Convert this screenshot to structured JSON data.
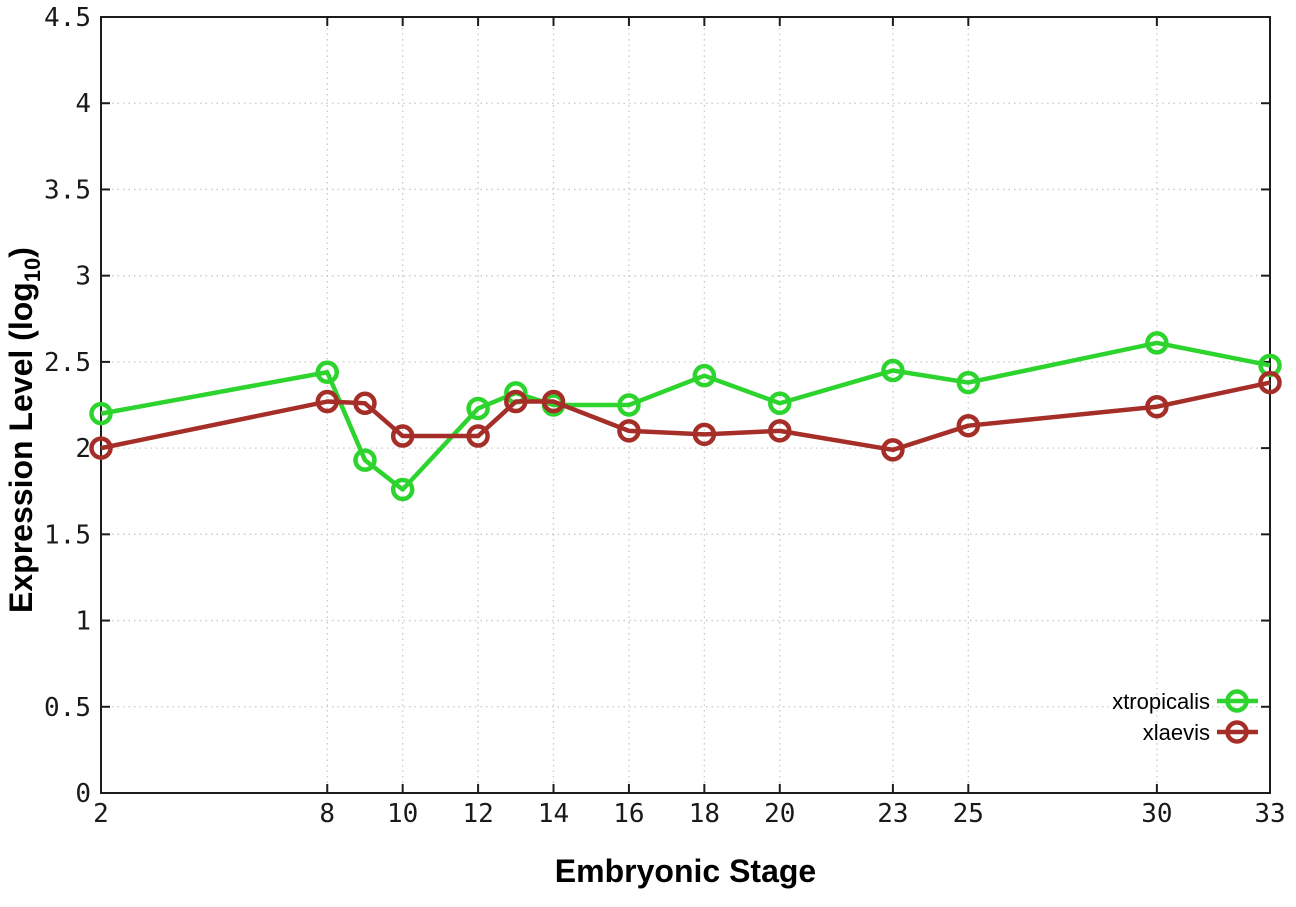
{
  "chart_data": {
    "type": "line",
    "title": "",
    "xlabel": "Embryonic Stage",
    "ylabel": "Expression Level (log10)",
    "ylabel_parts": {
      "main": "Expression Level (log",
      "sub": "10",
      "end": ")"
    },
    "x": [
      2,
      8,
      9,
      10,
      12,
      13,
      14,
      16,
      18,
      20,
      23,
      25,
      30,
      33
    ],
    "xlim": [
      2,
      33
    ],
    "ylim": [
      0,
      4.5
    ],
    "xtick_values": [
      2,
      8,
      10,
      12,
      14,
      16,
      18,
      20,
      23,
      25,
      30,
      33
    ],
    "xtick_labels": [
      "2",
      "8",
      "10",
      "12",
      "14",
      "16",
      "18",
      "20",
      "23",
      "25",
      "30",
      "33"
    ],
    "ytick_values": [
      0,
      0.5,
      1,
      1.5,
      2,
      2.5,
      3,
      3.5,
      4,
      4.5
    ],
    "ytick_labels": [
      "0",
      "0.5",
      "1",
      "1.5",
      "2",
      "2.5",
      "3",
      "3.5",
      "4",
      "4.5"
    ],
    "grid": true,
    "legend_position": "bottom-right",
    "series": [
      {
        "name": "xtropicalis",
        "color": "#2dd42d",
        "marker": "open-circle",
        "values": [
          2.2,
          2.44,
          1.93,
          1.76,
          2.23,
          2.32,
          2.25,
          2.25,
          2.42,
          2.26,
          2.45,
          2.38,
          2.61,
          2.48
        ]
      },
      {
        "name": "xlaevis",
        "color": "#a52f28",
        "marker": "open-circle",
        "values": [
          2.0,
          2.27,
          2.26,
          2.07,
          2.07,
          2.27,
          2.27,
          2.1,
          2.08,
          2.1,
          1.99,
          2.13,
          2.24,
          2.38
        ]
      }
    ],
    "colors": {
      "grid": "#c9c9c9",
      "border": "#1c1c1c",
      "tick_text": "#1a1a1a",
      "background": "#ffffff"
    }
  }
}
